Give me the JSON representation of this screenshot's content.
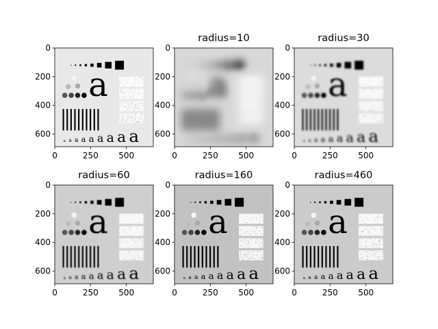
{
  "figure": {
    "panels": [
      {
        "title": "",
        "background": "#e8e8e8",
        "blur": 0,
        "noise_level": 1.0
      },
      {
        "title": "radius=10",
        "background": "#d8d8d8",
        "blur": 6,
        "noise_level": 0.5
      },
      {
        "title": "radius=30",
        "background": "#dcdcdc",
        "blur": 1.2,
        "noise_level": 0.8
      },
      {
        "title": "radius=60",
        "background": "#cfcfcf",
        "blur": 0.4,
        "noise_level": 0.9
      },
      {
        "title": "radius=160",
        "background": "#c2c2c2",
        "blur": 0.2,
        "noise_level": 1.0
      },
      {
        "title": "radius=460",
        "background": "#cbcbcb",
        "blur": 0,
        "noise_level": 1.0
      }
    ],
    "x_ticks": [
      "0",
      "250",
      "500"
    ],
    "y_ticks": [
      "0",
      "200",
      "400",
      "600"
    ]
  }
}
